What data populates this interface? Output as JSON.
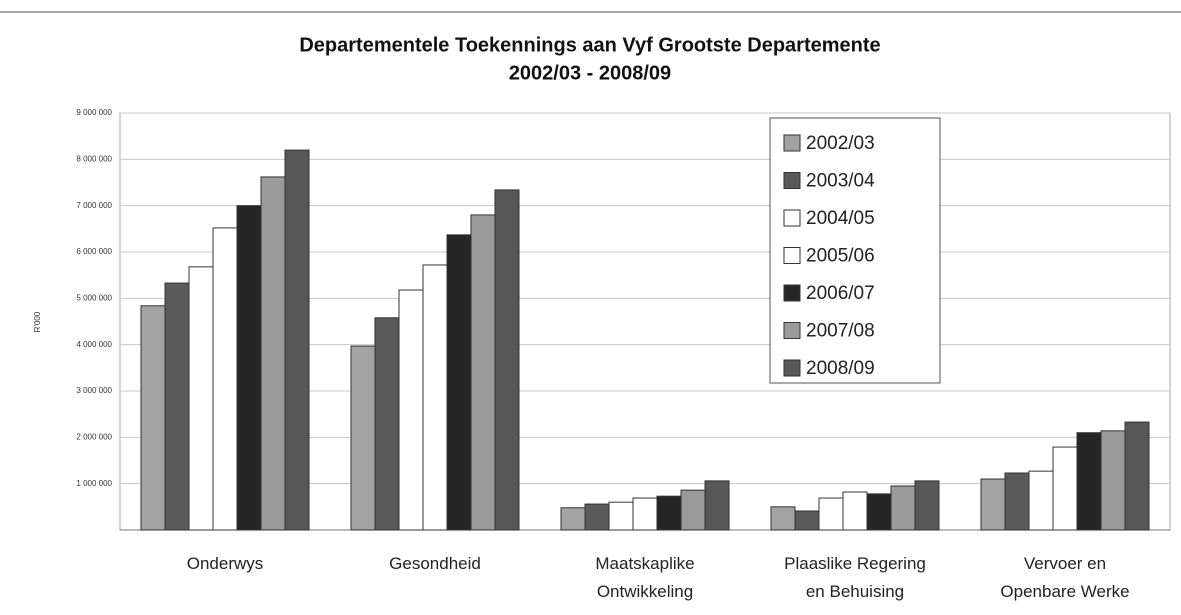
{
  "chart_data": {
    "type": "bar",
    "title": "Departementele Toekennings aan Vyf Grootste Departemente",
    "subtitle": "2002/03 - 2008/09",
    "y_label": "R'000",
    "categories": [
      "Onderwys",
      "Gesondheid",
      "Maatskaplike\nOntwikkeling",
      "Plaaslike Regering\nen Behuising",
      "Vervoer en\nOpenbare Werke"
    ],
    "series": [
      {
        "name": "2002/03",
        "color": "#a3a3a3",
        "values": [
          4840000,
          3970000,
          480000,
          500000,
          1100000
        ]
      },
      {
        "name": "2003/04",
        "color": "#5a5a5a",
        "values": [
          5330000,
          4580000,
          560000,
          410000,
          1230000
        ]
      },
      {
        "name": "2004/05",
        "color": "#ffffff",
        "values": [
          5680000,
          5180000,
          600000,
          690000,
          1270000
        ]
      },
      {
        "name": "2005/06",
        "color": "#ffffff",
        "values": [
          6520000,
          5720000,
          690000,
          820000,
          1790000
        ]
      },
      {
        "name": "2006/07",
        "color": "#262626",
        "values": [
          7000000,
          6370000,
          730000,
          780000,
          2100000
        ]
      },
      {
        "name": "2007/08",
        "color": "#9a9a9a",
        "values": [
          7620000,
          6800000,
          860000,
          950000,
          2140000
        ]
      },
      {
        "name": "2008/09",
        "color": "#575757",
        "values": [
          8200000,
          7340000,
          1060000,
          1060000,
          2330000
        ]
      }
    ],
    "ylim": [
      0,
      9000000
    ],
    "yticks": [
      {
        "value": 1000000,
        "label": "1 000 000"
      },
      {
        "value": 2000000,
        "label": "2 000 000"
      },
      {
        "value": 3000000,
        "label": "3 000 000"
      },
      {
        "value": 4000000,
        "label": "4 000 000"
      },
      {
        "value": 5000000,
        "label": "5 000 000"
      },
      {
        "value": 6000000,
        "label": "6 000 000"
      },
      {
        "value": 7000000,
        "label": "7 000 000"
      },
      {
        "value": 8000000,
        "label": "8 000 000"
      },
      {
        "value": 9000000,
        "label": "9 000 000"
      }
    ],
    "grid": true
  }
}
